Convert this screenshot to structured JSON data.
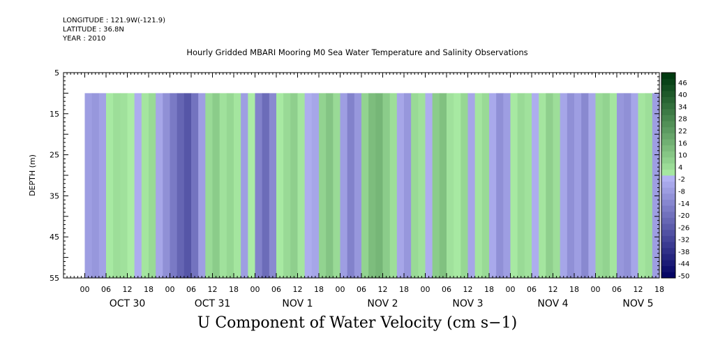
{
  "header": {
    "longitude": "LONGITUDE : 121.9W(-121.9)",
    "latitude": "LATITUDE : 36.8N",
    "year": "YEAR : 2010"
  },
  "chart_data": {
    "type": "heatmap",
    "title": "Hourly Gridded MBARI Mooring M0 Sea Water Temperature and Salinity Observations",
    "bottom_title": "U Component of Water Velocity (cm s−1)",
    "ylabel": "DEPTH (m)",
    "y_reversed": true,
    "ylim": [
      5,
      55
    ],
    "y_ticks": [
      5,
      15,
      25,
      35,
      45,
      55
    ],
    "data_depth_range": [
      10,
      55
    ],
    "xlim_hours": [
      -6,
      162
    ],
    "x_hour_ticks": [
      "00",
      "06",
      "12",
      "18",
      "00",
      "06",
      "12",
      "18",
      "00",
      "06",
      "12",
      "18",
      "00",
      "06",
      "12",
      "18",
      "00",
      "06",
      "12",
      "18",
      "00",
      "06",
      "12",
      "18",
      "00",
      "06",
      "12",
      "18"
    ],
    "x_days": [
      "OCT 30",
      "OCT 31",
      "NOV  1",
      "NOV  2",
      "NOV  3",
      "NOV  4",
      "NOV  5"
    ],
    "colorbar": {
      "levels": [
        -50,
        -44,
        -38,
        -32,
        -26,
        -20,
        -14,
        -8,
        -2,
        4,
        10,
        16,
        22,
        28,
        34,
        40,
        46
      ],
      "label_levels": [
        "46",
        "40",
        "34",
        "28",
        "22",
        "16",
        "10",
        "4",
        "-2",
        "-8",
        "-14",
        "-20",
        "-26",
        "-32",
        "-38",
        "-44",
        "-50"
      ],
      "neg_color_light": "#b4b4f4",
      "neg_color_dark": "#000060",
      "pos_color_light": "#aef0a8",
      "pos_color_dark": "#003a10"
    },
    "columns": [
      {
        "hour": 1,
        "v": -6
      },
      {
        "hour": 3,
        "v": -8
      },
      {
        "hour": 5,
        "v": -5
      },
      {
        "hour": 7,
        "v": 2
      },
      {
        "hour": 9,
        "v": 5
      },
      {
        "hour": 11,
        "v": 4
      },
      {
        "hour": 13,
        "v": 1
      },
      {
        "hour": 15,
        "v": -2
      },
      {
        "hour": 17,
        "v": 3
      },
      {
        "hour": 19,
        "v": 6
      },
      {
        "hour": 21,
        "v": -4
      },
      {
        "hour": 23,
        "v": -10
      },
      {
        "hour": 25,
        "v": -16
      },
      {
        "hour": 27,
        "v": -22
      },
      {
        "hour": 29,
        "v": -26
      },
      {
        "hour": 31,
        "v": -18
      },
      {
        "hour": 33,
        "v": -6
      },
      {
        "hour": 35,
        "v": 6
      },
      {
        "hour": 37,
        "v": 10
      },
      {
        "hour": 39,
        "v": 4
      },
      {
        "hour": 41,
        "v": 7
      },
      {
        "hour": 43,
        "v": 3
      },
      {
        "hour": 45,
        "v": -6
      },
      {
        "hour": 47,
        "v": 1
      },
      {
        "hour": 49,
        "v": -14
      },
      {
        "hour": 51,
        "v": -20
      },
      {
        "hour": 53,
        "v": -12
      },
      {
        "hour": 55,
        "v": 2
      },
      {
        "hour": 57,
        "v": 6
      },
      {
        "hour": 59,
        "v": 9
      },
      {
        "hour": 61,
        "v": 3
      },
      {
        "hour": 63,
        "v": -2
      },
      {
        "hour": 65,
        "v": -4
      },
      {
        "hour": 67,
        "v": 8
      },
      {
        "hour": 69,
        "v": 12
      },
      {
        "hour": 71,
        "v": 6
      },
      {
        "hour": 73,
        "v": -6
      },
      {
        "hour": 75,
        "v": -14
      },
      {
        "hour": 77,
        "v": -8
      },
      {
        "hour": 79,
        "v": 8
      },
      {
        "hour": 81,
        "v": 14
      },
      {
        "hour": 83,
        "v": 16
      },
      {
        "hour": 85,
        "v": 10
      },
      {
        "hour": 87,
        "v": 5
      },
      {
        "hour": 89,
        "v": -4
      },
      {
        "hour": 91,
        "v": -8
      },
      {
        "hour": 93,
        "v": 6
      },
      {
        "hour": 95,
        "v": 4
      },
      {
        "hour": 97,
        "v": -2
      },
      {
        "hour": 99,
        "v": 10
      },
      {
        "hour": 101,
        "v": 13
      },
      {
        "hour": 103,
        "v": 4
      },
      {
        "hour": 105,
        "v": 2
      },
      {
        "hour": 107,
        "v": 7
      },
      {
        "hour": 109,
        "v": -4
      },
      {
        "hour": 111,
        "v": 3
      },
      {
        "hour": 113,
        "v": 6
      },
      {
        "hour": 115,
        "v": -3
      },
      {
        "hour": 117,
        "v": -10
      },
      {
        "hour": 119,
        "v": -6
      },
      {
        "hour": 121,
        "v": 2
      },
      {
        "hour": 123,
        "v": 6
      },
      {
        "hour": 125,
        "v": 4
      },
      {
        "hour": 127,
        "v": -2
      },
      {
        "hour": 129,
        "v": 3
      },
      {
        "hour": 131,
        "v": 9
      },
      {
        "hour": 133,
        "v": 5
      },
      {
        "hour": 135,
        "v": -4
      },
      {
        "hour": 137,
        "v": -10
      },
      {
        "hour": 139,
        "v": -6
      },
      {
        "hour": 141,
        "v": -12
      },
      {
        "hour": 143,
        "v": -4
      },
      {
        "hour": 145,
        "v": 6
      },
      {
        "hour": 147,
        "v": 8
      },
      {
        "hour": 149,
        "v": 3
      },
      {
        "hour": 151,
        "v": -8
      },
      {
        "hour": 153,
        "v": -10
      },
      {
        "hour": 155,
        "v": -4
      },
      {
        "hour": 157,
        "v": 3
      },
      {
        "hour": 159,
        "v": 5
      },
      {
        "hour": 161,
        "v": -6
      }
    ]
  }
}
